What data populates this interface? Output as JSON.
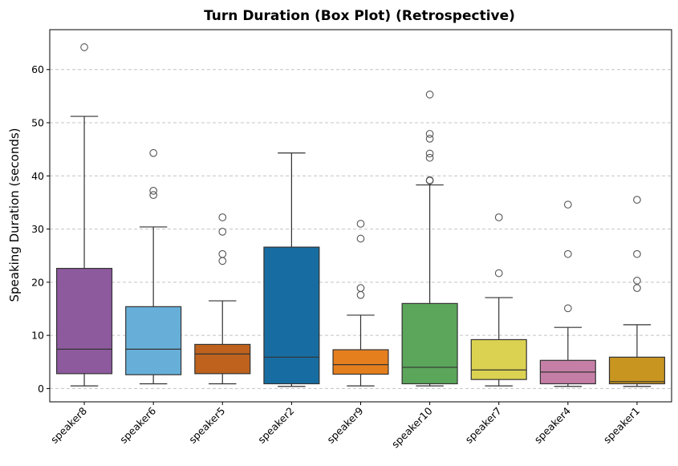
{
  "chart_data": {
    "type": "box",
    "title": "Turn Duration (Box Plot) (Retrospective)",
    "xlabel": "",
    "ylabel": "Speaking Duration (seconds)",
    "ylim": [
      -2.5,
      67.5
    ],
    "yticks": [
      0,
      10,
      20,
      30,
      40,
      50,
      60
    ],
    "grid": "y-dashed",
    "categories": [
      "speaker8",
      "speaker6",
      "speaker5",
      "speaker2",
      "speaker9",
      "speaker10",
      "speaker7",
      "speaker4",
      "speaker1"
    ],
    "boxes": [
      {
        "category": "speaker8",
        "whisker_low": 0.5,
        "q1": 2.8,
        "median": 7.4,
        "q3": 22.6,
        "whisker_high": 51.2,
        "outliers": [
          64.2
        ],
        "color": "#8E5A9E"
      },
      {
        "category": "speaker6",
        "whisker_low": 0.9,
        "q1": 2.6,
        "median": 7.4,
        "q3": 15.4,
        "whisker_high": 30.4,
        "outliers": [
          36.4,
          37.2,
          44.3
        ],
        "color": "#67AFD9"
      },
      {
        "category": "speaker5",
        "whisker_low": 0.9,
        "q1": 2.8,
        "median": 6.5,
        "q3": 8.3,
        "whisker_high": 16.5,
        "outliers": [
          24.0,
          25.3,
          29.5,
          32.2
        ],
        "color": "#BE621D"
      },
      {
        "category": "speaker2",
        "whisker_low": 0.4,
        "q1": 0.9,
        "median": 5.9,
        "q3": 26.6,
        "whisker_high": 44.3,
        "outliers": [],
        "color": "#176DA1"
      },
      {
        "category": "speaker9",
        "whisker_low": 0.5,
        "q1": 2.7,
        "median": 4.5,
        "q3": 7.3,
        "whisker_high": 13.8,
        "outliers": [
          17.6,
          18.9,
          28.2,
          31.0
        ],
        "color": "#E57F1E"
      },
      {
        "category": "speaker10",
        "whisker_low": 0.5,
        "q1": 0.9,
        "median": 4.0,
        "q3": 16.0,
        "whisker_high": 38.3,
        "outliers": [
          39.1,
          39.2,
          43.4,
          44.2,
          47.0,
          47.9,
          55.3
        ],
        "color": "#5BA65B"
      },
      {
        "category": "speaker7",
        "whisker_low": 0.5,
        "q1": 1.7,
        "median": 3.5,
        "q3": 9.2,
        "whisker_high": 17.1,
        "outliers": [
          21.7,
          32.2
        ],
        "color": "#DBD251"
      },
      {
        "category": "speaker4",
        "whisker_low": 0.4,
        "q1": 0.9,
        "median": 3.1,
        "q3": 5.3,
        "whisker_high": 11.5,
        "outliers": [
          15.1,
          25.3,
          34.6
        ],
        "color": "#C57FA6"
      },
      {
        "category": "speaker1",
        "whisker_low": 0.4,
        "q1": 0.9,
        "median": 1.3,
        "q3": 5.9,
        "whisker_high": 12.0,
        "outliers": [
          18.9,
          20.3,
          25.3,
          35.5
        ],
        "color": "#C89520"
      }
    ]
  }
}
